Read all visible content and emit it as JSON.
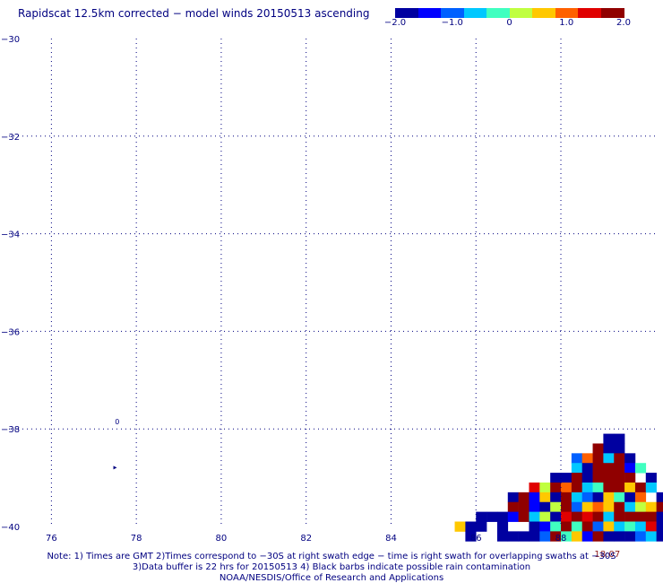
{
  "title": "Rapidscat 12.5km corrected − model winds 20150513 ascending",
  "colorbar": {
    "colors": [
      "#0000a0",
      "#0000ff",
      "#0060ff",
      "#00c8ff",
      "#40ffc0",
      "#c0ff40",
      "#ffc800",
      "#ff6000",
      "#e00000",
      "#900000"
    ],
    "ticks": [
      {
        "value": -2.0,
        "label": "−2.0"
      },
      {
        "value": -1.0,
        "label": "−1.0"
      },
      {
        "value": 0,
        "label": "0"
      },
      {
        "value": 1.0,
        "label": "1.0"
      },
      {
        "value": 2.0,
        "label": "2.0"
      }
    ],
    "range": [
      -2.0,
      2.0
    ]
  },
  "chart_data": {
    "type": "heatmap",
    "title": "Rapidscat 12.5km corrected − model winds 20150513 ascending",
    "xlabel": "",
    "ylabel": "",
    "xlim": [
      75,
      90.3
    ],
    "ylim": [
      -40,
      -30
    ],
    "x_ticks": [
      {
        "value": 76,
        "label": "76"
      },
      {
        "value": 78,
        "label": "78"
      },
      {
        "value": 80,
        "label": "80"
      },
      {
        "value": 82,
        "label": "82"
      },
      {
        "value": 84,
        "label": "84"
      },
      {
        "value": 86,
        "label": "86"
      },
      {
        "value": 88,
        "label": "88"
      }
    ],
    "y_ticks": [
      {
        "value": -30,
        "label": "−30"
      },
      {
        "value": -32,
        "label": "−32"
      },
      {
        "value": -34,
        "label": "−34"
      },
      {
        "value": -36,
        "label": "−36"
      },
      {
        "value": -38,
        "label": "−38"
      },
      {
        "value": -40,
        "label": "−40"
      }
    ],
    "grid": true,
    "time_label": {
      "text": "18:07",
      "lon": 89.0,
      "lat": -40.4
    },
    "station_markers": [
      {
        "label": "0",
        "lon": 77.55,
        "lat": -37.85
      },
      {
        "label": "▸",
        "lon": 77.5,
        "lat": -38.78
      }
    ],
    "cell_size_deg": 0.25,
    "cells": [
      [
        89.0,
        -38.2,
        -2.0
      ],
      [
        89.25,
        -38.2,
        -2.0
      ],
      [
        88.75,
        -38.4,
        1.8
      ],
      [
        89.0,
        -38.4,
        -2.0
      ],
      [
        89.25,
        -38.4,
        -2.0
      ],
      [
        88.25,
        -38.6,
        -1.2
      ],
      [
        88.5,
        -38.6,
        0.9
      ],
      [
        88.75,
        -38.6,
        2.0
      ],
      [
        89.0,
        -38.6,
        -0.8
      ],
      [
        89.25,
        -38.6,
        2.0
      ],
      [
        89.5,
        -38.6,
        -2.0
      ],
      [
        88.25,
        -38.8,
        -0.5
      ],
      [
        88.5,
        -38.8,
        -2.0
      ],
      [
        88.75,
        -38.8,
        2.0
      ],
      [
        89.0,
        -38.8,
        2.0
      ],
      [
        89.25,
        -38.8,
        1.9
      ],
      [
        89.5,
        -38.8,
        -1.5
      ],
      [
        89.75,
        -38.8,
        -0.3
      ],
      [
        87.75,
        -39.0,
        -2.0
      ],
      [
        88.0,
        -39.0,
        -1.9
      ],
      [
        88.25,
        -39.0,
        2.0
      ],
      [
        88.5,
        -39.0,
        -1.8
      ],
      [
        88.75,
        -39.0,
        2.0
      ],
      [
        89.0,
        -39.0,
        2.0
      ],
      [
        89.25,
        -39.0,
        2.0
      ],
      [
        89.5,
        -39.0,
        2.0
      ],
      [
        90.0,
        -39.0,
        -2.0
      ],
      [
        87.25,
        -39.2,
        1.3
      ],
      [
        87.5,
        -39.2,
        0.2
      ],
      [
        87.75,
        -39.2,
        1.8
      ],
      [
        88.0,
        -39.2,
        1.1
      ],
      [
        88.25,
        -39.2,
        2.0
      ],
      [
        88.5,
        -39.2,
        -0.8
      ],
      [
        88.75,
        -39.2,
        -0.3
      ],
      [
        89.0,
        -39.2,
        2.0
      ],
      [
        89.25,
        -39.2,
        2.0
      ],
      [
        89.5,
        -39.2,
        0.4
      ],
      [
        89.75,
        -39.2,
        1.7
      ],
      [
        90.0,
        -39.2,
        -0.6
      ],
      [
        86.75,
        -39.4,
        -2.0
      ],
      [
        87.0,
        -39.4,
        2.0
      ],
      [
        87.25,
        -39.4,
        -1.3
      ],
      [
        87.5,
        -39.4,
        0.4
      ],
      [
        87.75,
        -39.4,
        -2.0
      ],
      [
        88.0,
        -39.4,
        1.8
      ],
      [
        88.25,
        -39.4,
        -0.7
      ],
      [
        88.5,
        -39.4,
        -1.0
      ],
      [
        88.75,
        -39.4,
        -1.6
      ],
      [
        89.0,
        -39.4,
        0.5
      ],
      [
        89.25,
        -39.4,
        -0.2
      ],
      [
        89.5,
        -39.4,
        -1.9
      ],
      [
        89.75,
        -39.4,
        0.8
      ],
      [
        90.25,
        -39.4,
        -2.0
      ],
      [
        86.75,
        -39.6,
        1.9
      ],
      [
        87.0,
        -39.6,
        2.0
      ],
      [
        87.25,
        -39.6,
        -1.5
      ],
      [
        87.5,
        -39.6,
        -2.0
      ],
      [
        87.75,
        -39.6,
        0.3
      ],
      [
        88.0,
        -39.6,
        2.0
      ],
      [
        88.25,
        -39.6,
        -1.2
      ],
      [
        88.5,
        -39.6,
        0.6
      ],
      [
        88.75,
        -39.6,
        0.9
      ],
      [
        89.0,
        -39.6,
        0.7
      ],
      [
        89.25,
        -39.6,
        2.0
      ],
      [
        89.5,
        -39.6,
        -0.6
      ],
      [
        89.75,
        -39.6,
        0.2
      ],
      [
        90.0,
        -39.6,
        0.7
      ],
      [
        90.25,
        -39.6,
        2.0
      ],
      [
        86.0,
        -39.8,
        -2.0
      ],
      [
        86.25,
        -39.8,
        -2.0
      ],
      [
        86.5,
        -39.8,
        -1.6
      ],
      [
        86.75,
        -39.8,
        -1.4
      ],
      [
        87.0,
        -39.8,
        1.7
      ],
      [
        87.25,
        -39.8,
        -0.8
      ],
      [
        87.5,
        -39.8,
        0.1
      ],
      [
        87.75,
        -39.8,
        -2.0
      ],
      [
        88.0,
        -39.8,
        1.5
      ],
      [
        88.25,
        -39.8,
        2.0
      ],
      [
        88.5,
        -39.8,
        1.4
      ],
      [
        88.75,
        -39.8,
        1.9
      ],
      [
        89.0,
        -39.8,
        -0.5
      ],
      [
        89.25,
        -39.8,
        2.0
      ],
      [
        89.5,
        -39.8,
        2.0
      ],
      [
        89.75,
        -39.8,
        2.0
      ],
      [
        90.0,
        -39.8,
        2.0
      ],
      [
        90.25,
        -39.8,
        -1.8
      ],
      [
        87.25,
        -40.0,
        -2.0
      ],
      [
        87.5,
        -40.0,
        -1.5
      ],
      [
        87.75,
        -40.0,
        -0.4
      ],
      [
        88.0,
        -40.0,
        2.0
      ],
      [
        88.25,
        -40.0,
        -0.3
      ],
      [
        88.5,
        -40.0,
        1.6
      ],
      [
        88.75,
        -40.0,
        -1.2
      ],
      [
        89.0,
        -40.0,
        0.4
      ],
      [
        89.25,
        -40.0,
        -0.7
      ],
      [
        89.5,
        -40.0,
        -0.2
      ],
      [
        89.75,
        -40.0,
        -0.8
      ],
      [
        90.0,
        -40.0,
        1.3
      ],
      [
        90.25,
        -40.0,
        -1.6
      ],
      [
        85.5,
        -40.0,
        0.5
      ],
      [
        85.75,
        -40.0,
        -2.0
      ],
      [
        86.0,
        -40.0,
        -1.7
      ],
      [
        86.5,
        -40.0,
        -2.0
      ],
      [
        85.75,
        -40.2,
        -2.0
      ],
      [
        86.5,
        -40.2,
        -2.0
      ],
      [
        86.75,
        -40.2,
        -2.0
      ],
      [
        87.0,
        -40.2,
        -2.0
      ],
      [
        87.25,
        -40.2,
        -1.8
      ],
      [
        87.5,
        -40.2,
        -1.0
      ],
      [
        87.75,
        -40.2,
        2.0
      ],
      [
        88.0,
        -40.2,
        -0.2
      ],
      [
        88.25,
        -40.2,
        0.6
      ],
      [
        88.5,
        -40.2,
        -1.4
      ],
      [
        88.75,
        -40.2,
        1.8
      ],
      [
        89.0,
        -40.2,
        -1.9
      ],
      [
        89.25,
        -40.2,
        -1.6
      ],
      [
        89.5,
        -40.2,
        -2.0
      ],
      [
        89.75,
        -40.2,
        -1.2
      ],
      [
        90.0,
        -40.2,
        -0.5
      ],
      [
        90.25,
        -40.2,
        -1.9
      ]
    ]
  },
  "footer": {
    "line1": "Note: 1) Times are GMT 2)Times correspond to −30S at right swath edge − time is right swath for overlapping swaths at −30S",
    "line2": "3)Data buffer is 22 hrs for 20150513 4) Black barbs indicate possible rain contamination",
    "line3": "NOAA/NESDIS/Office of Research and Applications"
  }
}
